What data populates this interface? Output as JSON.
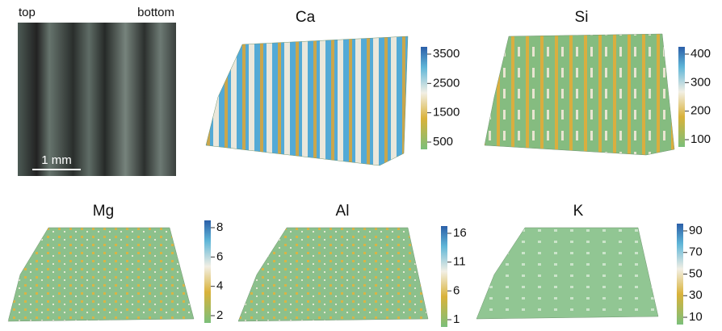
{
  "image": {
    "left_label": "top",
    "right_label": "bottom",
    "scale_label": "1 mm"
  },
  "panels": [
    {
      "title": "Ca",
      "ticks": [
        3500,
        2500,
        1500,
        500
      ]
    },
    {
      "title": "Si",
      "ticks": [
        400,
        300,
        200,
        100
      ]
    },
    {
      "title": "Mg",
      "ticks": [
        8,
        6,
        4,
        2
      ]
    },
    {
      "title": "Al",
      "ticks": [
        16,
        11,
        6,
        1
      ]
    },
    {
      "title": "K",
      "ticks": [
        90,
        70,
        50,
        30,
        10
      ]
    }
  ]
}
